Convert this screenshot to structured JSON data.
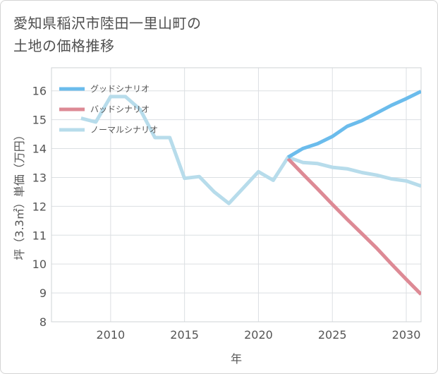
{
  "page": {
    "title_line1": "愛知県稲沢市陸田一里山町の",
    "title_line2": "土地の価格推移"
  },
  "chart_data": {
    "type": "line",
    "title": "愛知県稲沢市陸田一里山町の土地の価格推移",
    "xlabel": "年",
    "ylabel": "坪（3.3㎡）単価（万円）",
    "xlim": [
      2006,
      2031
    ],
    "ylim": [
      8,
      16.8
    ],
    "x_ticks": [
      2010,
      2015,
      2020,
      2025,
      2030
    ],
    "y_ticks": [
      8,
      9,
      10,
      11,
      12,
      13,
      14,
      15,
      16
    ],
    "grid": true,
    "legend_position": "top-left",
    "series": [
      {
        "name": "グッドシナリオ",
        "color": "#6bbcec",
        "x": [
          2022,
          2023,
          2024,
          2025,
          2026,
          2027,
          2028,
          2029,
          2030,
          2031
        ],
        "values": [
          13.7,
          14.0,
          14.17,
          14.42,
          14.77,
          14.97,
          15.23,
          15.5,
          15.73,
          15.98
        ]
      },
      {
        "name": "バッドシナリオ",
        "color": "#dd8a95",
        "x": [
          2022,
          2023,
          2024,
          2025,
          2026,
          2027,
          2028,
          2029,
          2030,
          2031
        ],
        "values": [
          13.65,
          13.12,
          12.6,
          12.07,
          11.55,
          11.05,
          10.55,
          10.0,
          9.47,
          8.95
        ]
      },
      {
        "name": "ノーマルシナリオ",
        "color": "#b7dceb",
        "x": [
          2008,
          2009,
          2010,
          2011,
          2012,
          2013,
          2014,
          2015,
          2016,
          2017,
          2018,
          2019,
          2020,
          2021,
          2022,
          2023,
          2024,
          2025,
          2026,
          2027,
          2028,
          2029,
          2030,
          2031
        ],
        "values": [
          15.05,
          14.92,
          15.8,
          15.8,
          15.35,
          14.38,
          14.38,
          12.97,
          13.03,
          12.5,
          12.1,
          12.65,
          13.2,
          12.9,
          13.7,
          13.52,
          13.48,
          13.35,
          13.3,
          13.17,
          13.08,
          12.95,
          12.88,
          12.7
        ]
      }
    ]
  }
}
